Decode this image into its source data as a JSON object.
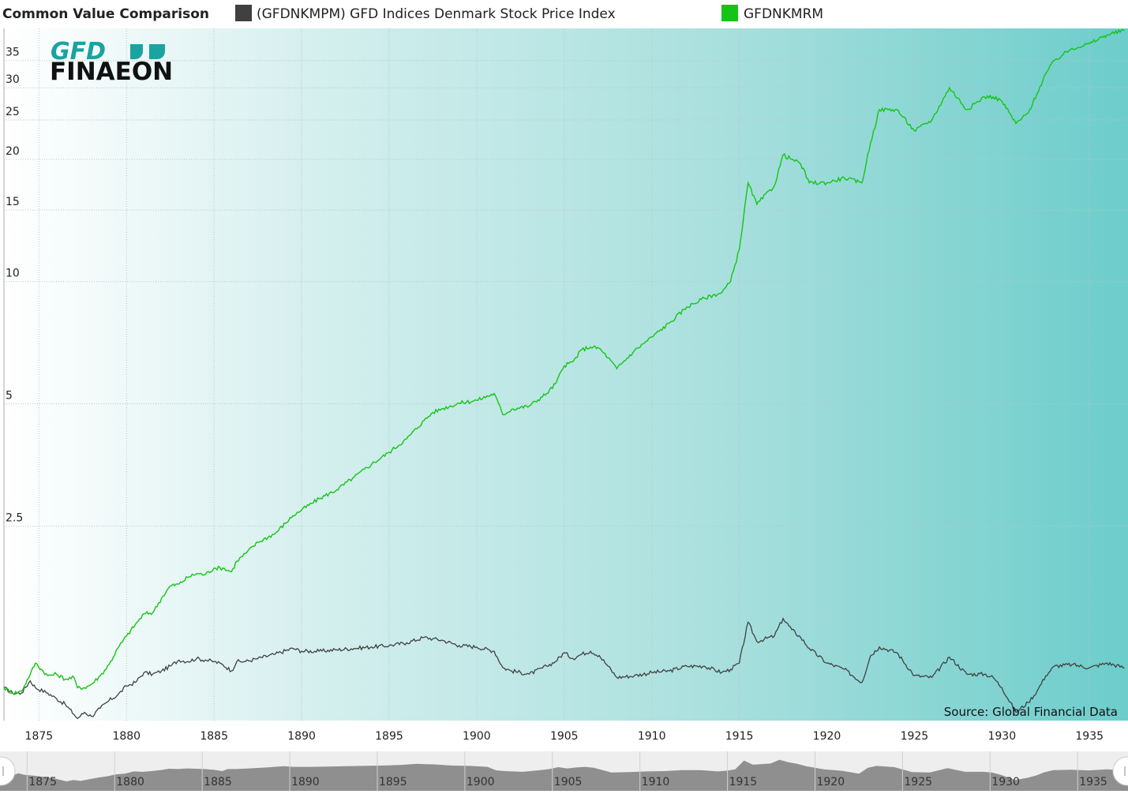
{
  "header": {
    "title": "Common Value Comparison",
    "legend": [
      {
        "label": "(GFDNKMPM) GFD Indices Denmark Stock Price Index",
        "color": "#404040",
        "icon": "square-swatch"
      },
      {
        "label": "GFDNKMRM",
        "color": "#16c416",
        "icon": "square-swatch"
      }
    ]
  },
  "logo": {
    "line1": "GFD",
    "line2": "FINAEON"
  },
  "source": "Source: Global Financial Data",
  "chart_data": {
    "type": "line",
    "title": "Common Value Comparison",
    "y_scale": "log",
    "ylim": [
      0.83,
      42
    ],
    "xlim": [
      1873,
      1937.2
    ],
    "y_ticks": [
      2.5,
      5,
      10,
      15,
      20,
      25,
      30,
      35
    ],
    "y_tick_labels": [
      "2.5",
      "5",
      "10",
      "15",
      "20",
      "25",
      "30",
      "35"
    ],
    "x_ticks": [
      1875,
      1880,
      1885,
      1890,
      1895,
      1900,
      1905,
      1910,
      1915,
      1920,
      1925,
      1930,
      1935
    ],
    "x_tick_labels": [
      "1875",
      "1880",
      "1885",
      "1890",
      "1895",
      "1900",
      "1905",
      "1910",
      "1915",
      "1920",
      "1925",
      "1930",
      "1935"
    ],
    "grid": true,
    "legend_position": "top",
    "series": [
      {
        "name": "(GFDNKMPM) GFD Indices Denmark Stock Price Index",
        "color": "#404040",
        "points": [
          [
            1873.0,
            1.0
          ],
          [
            1873.5,
            0.97
          ],
          [
            1874.0,
            0.97
          ],
          [
            1874.5,
            1.04
          ],
          [
            1874.8,
            1.0
          ],
          [
            1875.5,
            0.97
          ],
          [
            1876.0,
            0.94
          ],
          [
            1876.5,
            0.91
          ],
          [
            1877.0,
            0.86
          ],
          [
            1877.2,
            0.84
          ],
          [
            1877.6,
            0.87
          ],
          [
            1878.0,
            0.85
          ],
          [
            1878.5,
            0.89
          ],
          [
            1879.0,
            0.93
          ],
          [
            1879.5,
            0.96
          ],
          [
            1880.0,
            1.01
          ],
          [
            1880.5,
            1.03
          ],
          [
            1881.0,
            1.09
          ],
          [
            1881.5,
            1.08
          ],
          [
            1882.0,
            1.1
          ],
          [
            1882.5,
            1.13
          ],
          [
            1883.0,
            1.17
          ],
          [
            1883.5,
            1.16
          ],
          [
            1884.0,
            1.18
          ],
          [
            1884.5,
            1.17
          ],
          [
            1885.0,
            1.16
          ],
          [
            1885.5,
            1.14
          ],
          [
            1886.0,
            1.1
          ],
          [
            1886.3,
            1.16
          ],
          [
            1886.8,
            1.16
          ],
          [
            1887.5,
            1.18
          ],
          [
            1888.5,
            1.21
          ],
          [
            1889.5,
            1.25
          ],
          [
            1890.0,
            1.23
          ],
          [
            1891.0,
            1.23
          ],
          [
            1892.0,
            1.24
          ],
          [
            1893.0,
            1.25
          ],
          [
            1894.0,
            1.26
          ],
          [
            1895.0,
            1.27
          ],
          [
            1896.0,
            1.29
          ],
          [
            1897.0,
            1.33
          ],
          [
            1897.5,
            1.32
          ],
          [
            1898.0,
            1.31
          ],
          [
            1899.0,
            1.27
          ],
          [
            1900.0,
            1.26
          ],
          [
            1901.0,
            1.23
          ],
          [
            1901.5,
            1.12
          ],
          [
            1902.0,
            1.1
          ],
          [
            1903.0,
            1.08
          ],
          [
            1904.0,
            1.13
          ],
          [
            1904.5,
            1.16
          ],
          [
            1905.0,
            1.22
          ],
          [
            1905.5,
            1.18
          ],
          [
            1906.0,
            1.21
          ],
          [
            1906.5,
            1.23
          ],
          [
            1907.0,
            1.2
          ],
          [
            1907.5,
            1.13
          ],
          [
            1908.0,
            1.06
          ],
          [
            1909.0,
            1.07
          ],
          [
            1910.0,
            1.09
          ],
          [
            1911.0,
            1.1
          ],
          [
            1912.0,
            1.13
          ],
          [
            1913.0,
            1.13
          ],
          [
            1914.0,
            1.09
          ],
          [
            1914.5,
            1.11
          ],
          [
            1915.0,
            1.15
          ],
          [
            1915.5,
            1.45
          ],
          [
            1916.0,
            1.3
          ],
          [
            1917.0,
            1.34
          ],
          [
            1917.5,
            1.48
          ],
          [
            1918.0,
            1.39
          ],
          [
            1918.5,
            1.33
          ],
          [
            1919.0,
            1.25
          ],
          [
            1920.0,
            1.15
          ],
          [
            1921.0,
            1.11
          ],
          [
            1922.0,
            1.03
          ],
          [
            1922.5,
            1.2
          ],
          [
            1923.0,
            1.26
          ],
          [
            1924.0,
            1.22
          ],
          [
            1925.0,
            1.07
          ],
          [
            1926.0,
            1.06
          ],
          [
            1927.0,
            1.19
          ],
          [
            1928.0,
            1.08
          ],
          [
            1929.0,
            1.08
          ],
          [
            1929.5,
            1.06
          ],
          [
            1930.0,
            1.0
          ],
          [
            1930.8,
            0.87
          ],
          [
            1931.5,
            0.92
          ],
          [
            1932.0,
            0.98
          ],
          [
            1932.5,
            1.07
          ],
          [
            1933.0,
            1.13
          ],
          [
            1934.0,
            1.14
          ],
          [
            1935.0,
            1.12
          ],
          [
            1936.0,
            1.15
          ],
          [
            1937.0,
            1.12
          ]
        ]
      },
      {
        "name": "GFDNKMRM",
        "color": "#16c416",
        "points": [
          [
            1873.0,
            1.0
          ],
          [
            1873.5,
            0.97
          ],
          [
            1874.0,
            0.98
          ],
          [
            1874.5,
            1.08
          ],
          [
            1874.8,
            1.15
          ],
          [
            1875.5,
            1.07
          ],
          [
            1876.0,
            1.08
          ],
          [
            1876.5,
            1.05
          ],
          [
            1877.0,
            1.06
          ],
          [
            1877.2,
            1.0
          ],
          [
            1877.6,
            1.0
          ],
          [
            1878.0,
            1.02
          ],
          [
            1878.5,
            1.07
          ],
          [
            1879.0,
            1.14
          ],
          [
            1879.5,
            1.25
          ],
          [
            1880.0,
            1.34
          ],
          [
            1880.5,
            1.43
          ],
          [
            1881.0,
            1.52
          ],
          [
            1881.5,
            1.53
          ],
          [
            1882.0,
            1.66
          ],
          [
            1882.5,
            1.78
          ],
          [
            1883.0,
            1.8
          ],
          [
            1883.5,
            1.87
          ],
          [
            1884.0,
            1.91
          ],
          [
            1884.5,
            1.9
          ],
          [
            1885.0,
            1.97
          ],
          [
            1885.5,
            1.97
          ],
          [
            1886.0,
            1.93
          ],
          [
            1886.3,
            2.05
          ],
          [
            1886.8,
            2.14
          ],
          [
            1887.5,
            2.28
          ],
          [
            1888.5,
            2.4
          ],
          [
            1889.5,
            2.65
          ],
          [
            1890.0,
            2.74
          ],
          [
            1891.0,
            2.92
          ],
          [
            1892.0,
            3.07
          ],
          [
            1893.0,
            3.3
          ],
          [
            1894.0,
            3.55
          ],
          [
            1895.0,
            3.8
          ],
          [
            1896.0,
            4.1
          ],
          [
            1897.0,
            4.55
          ],
          [
            1897.5,
            4.76
          ],
          [
            1898.0,
            4.86
          ],
          [
            1899.0,
            5.02
          ],
          [
            1900.0,
            5.1
          ],
          [
            1901.0,
            5.3
          ],
          [
            1901.5,
            4.7
          ],
          [
            1902.0,
            4.85
          ],
          [
            1903.0,
            4.94
          ],
          [
            1904.0,
            5.3
          ],
          [
            1904.5,
            5.6
          ],
          [
            1905.0,
            6.2
          ],
          [
            1905.5,
            6.35
          ],
          [
            1906.0,
            6.8
          ],
          [
            1906.5,
            6.9
          ],
          [
            1907.0,
            6.85
          ],
          [
            1907.5,
            6.5
          ],
          [
            1908.0,
            6.1
          ],
          [
            1909.0,
            6.75
          ],
          [
            1910.0,
            7.3
          ],
          [
            1911.0,
            7.9
          ],
          [
            1912.0,
            8.65
          ],
          [
            1913.0,
            9.1
          ],
          [
            1914.0,
            9.4
          ],
          [
            1914.5,
            10.0
          ],
          [
            1915.0,
            12.0
          ],
          [
            1915.5,
            17.5
          ],
          [
            1916.0,
            15.5
          ],
          [
            1917.0,
            17.2
          ],
          [
            1917.5,
            20.5
          ],
          [
            1918.0,
            20.0
          ],
          [
            1918.5,
            19.5
          ],
          [
            1919.0,
            17.5
          ],
          [
            1920.0,
            17.5
          ],
          [
            1921.0,
            18.0
          ],
          [
            1922.0,
            17.5
          ],
          [
            1922.5,
            22.0
          ],
          [
            1923.0,
            26.5
          ],
          [
            1924.0,
            26.5
          ],
          [
            1925.0,
            23.5
          ],
          [
            1926.0,
            25.0
          ],
          [
            1927.0,
            30.0
          ],
          [
            1928.0,
            26.5
          ],
          [
            1929.0,
            28.5
          ],
          [
            1929.5,
            28.5
          ],
          [
            1930.0,
            27.8
          ],
          [
            1930.8,
            24.5
          ],
          [
            1931.5,
            26.0
          ],
          [
            1932.0,
            29.0
          ],
          [
            1932.5,
            32.5
          ],
          [
            1933.0,
            35.0
          ],
          [
            1934.0,
            37.5
          ],
          [
            1935.0,
            38.5
          ],
          [
            1936.0,
            40.5
          ],
          [
            1937.0,
            41.5
          ]
        ]
      }
    ]
  }
}
